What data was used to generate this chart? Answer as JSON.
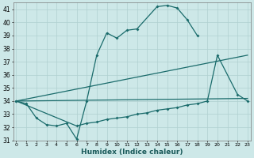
{
  "xlabel": "Humidex (Indice chaleur)",
  "xlim_min": -0.3,
  "xlim_max": 23.3,
  "ylim_min": 31,
  "ylim_max": 41.5,
  "yticks": [
    31,
    32,
    33,
    34,
    35,
    36,
    37,
    38,
    39,
    40,
    41
  ],
  "xticks": [
    0,
    1,
    2,
    3,
    4,
    5,
    6,
    7,
    8,
    9,
    10,
    11,
    12,
    13,
    14,
    15,
    16,
    17,
    18,
    19,
    20,
    21,
    22,
    23
  ],
  "bg_color": "#cde8e8",
  "grid_color": "#b0d0d0",
  "line_color": "#1a6b6b",
  "series": [
    {
      "x": [
        0,
        1,
        2,
        3,
        4,
        5,
        6,
        7,
        8,
        9,
        10,
        11,
        12,
        14,
        15,
        16,
        17,
        18
      ],
      "y": [
        34,
        33.8,
        32.7,
        32.2,
        32.1,
        32.3,
        31.1,
        34.0,
        37.5,
        39.2,
        38.8,
        39.4,
        39.5,
        41.2,
        41.3,
        41.1,
        40.2,
        39.0
      ],
      "markers": true
    },
    {
      "x": [
        0,
        6,
        7,
        8,
        9,
        10,
        11,
        12,
        13,
        14,
        15,
        16,
        17,
        18,
        19,
        20,
        22,
        23
      ],
      "y": [
        34,
        32.1,
        32.3,
        32.4,
        32.6,
        32.7,
        32.8,
        33.0,
        33.1,
        33.3,
        33.4,
        33.5,
        33.7,
        33.8,
        34.0,
        37.5,
        34.5,
        34.0
      ],
      "markers": true
    },
    {
      "x": [
        0,
        23
      ],
      "y": [
        34,
        37.5
      ],
      "markers": false
    },
    {
      "x": [
        0,
        23
      ],
      "y": [
        34,
        34.2
      ],
      "markers": false
    }
  ]
}
